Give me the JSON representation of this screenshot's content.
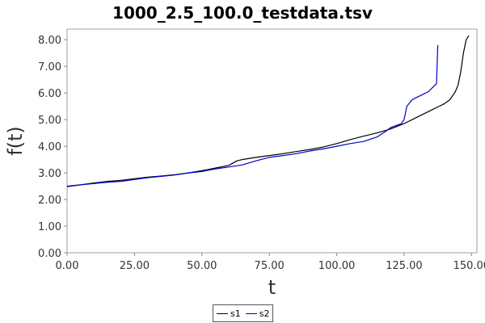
{
  "chart_data": {
    "type": "line",
    "title": "1000_2.5_100.0_testdata.tsv",
    "xlabel": "t",
    "ylabel": "f(t)",
    "xlim": [
      0,
      152
    ],
    "ylim": [
      0,
      8.4
    ],
    "x_ticks": [
      "0.00",
      "25.00",
      "50.00",
      "75.00",
      "100.00",
      "125.00",
      "150.00"
    ],
    "y_ticks": [
      "0.00",
      "1.00",
      "2.00",
      "3.00",
      "4.00",
      "5.00",
      "6.00",
      "7.00",
      "8.00"
    ],
    "grid": false,
    "legend_position": "bottom-center",
    "series": [
      {
        "name": "s1",
        "color": "#000000",
        "points": [
          [
            0,
            2.5
          ],
          [
            5,
            2.55
          ],
          [
            10,
            2.62
          ],
          [
            15,
            2.68
          ],
          [
            20,
            2.72
          ],
          [
            25,
            2.78
          ],
          [
            30,
            2.84
          ],
          [
            35,
            2.88
          ],
          [
            40,
            2.93
          ],
          [
            45,
            3.0
          ],
          [
            50,
            3.08
          ],
          [
            55,
            3.18
          ],
          [
            60,
            3.28
          ],
          [
            63,
            3.45
          ],
          [
            65,
            3.5
          ],
          [
            70,
            3.58
          ],
          [
            75,
            3.65
          ],
          [
            80,
            3.72
          ],
          [
            85,
            3.8
          ],
          [
            90,
            3.88
          ],
          [
            95,
            3.97
          ],
          [
            100,
            4.1
          ],
          [
            105,
            4.25
          ],
          [
            110,
            4.38
          ],
          [
            115,
            4.5
          ],
          [
            120,
            4.65
          ],
          [
            125,
            4.85
          ],
          [
            130,
            5.1
          ],
          [
            135,
            5.35
          ],
          [
            138,
            5.5
          ],
          [
            140,
            5.6
          ],
          [
            142,
            5.75
          ],
          [
            144,
            6.05
          ],
          [
            145,
            6.3
          ],
          [
            146,
            6.8
          ],
          [
            147,
            7.5
          ],
          [
            148,
            8.0
          ],
          [
            149,
            8.15
          ]
        ]
      },
      {
        "name": "s2",
        "color": "#0000cc",
        "points": [
          [
            0,
            2.48
          ],
          [
            5,
            2.55
          ],
          [
            10,
            2.6
          ],
          [
            15,
            2.65
          ],
          [
            20,
            2.68
          ],
          [
            25,
            2.75
          ],
          [
            30,
            2.82
          ],
          [
            35,
            2.87
          ],
          [
            40,
            2.92
          ],
          [
            45,
            3.0
          ],
          [
            50,
            3.05
          ],
          [
            55,
            3.15
          ],
          [
            60,
            3.22
          ],
          [
            65,
            3.3
          ],
          [
            70,
            3.45
          ],
          [
            75,
            3.58
          ],
          [
            80,
            3.65
          ],
          [
            85,
            3.72
          ],
          [
            90,
            3.82
          ],
          [
            95,
            3.9
          ],
          [
            100,
            4.0
          ],
          [
            105,
            4.1
          ],
          [
            110,
            4.18
          ],
          [
            115,
            4.35
          ],
          [
            118,
            4.55
          ],
          [
            120,
            4.7
          ],
          [
            124,
            4.85
          ],
          [
            125,
            5.0
          ],
          [
            126,
            5.5
          ],
          [
            128,
            5.75
          ],
          [
            130,
            5.85
          ],
          [
            132,
            5.95
          ],
          [
            134,
            6.05
          ],
          [
            136,
            6.25
          ],
          [
            137,
            6.35
          ],
          [
            137.5,
            7.8
          ]
        ]
      }
    ]
  }
}
